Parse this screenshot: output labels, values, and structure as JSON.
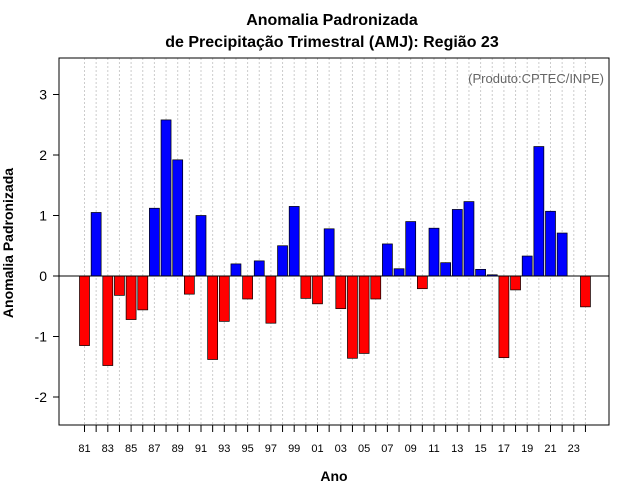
{
  "chart_data": {
    "type": "bar",
    "title_line1": "Anomalia Padronizada",
    "title_line2": "de Precipitação Trimestral (AMJ): Região 23",
    "xlabel": "Ano",
    "ylabel": "Anomalia Padronizada",
    "credit": "(Produto:CPTEC/INPE)",
    "ylim": [
      -2.5,
      3.6
    ],
    "yticks": [
      -2,
      -1,
      0,
      1,
      2,
      3
    ],
    "ytick_labels": [
      "-2",
      "-1",
      "0",
      "1",
      "2",
      "3"
    ],
    "years": [
      "81",
      "82",
      "83",
      "84",
      "85",
      "86",
      "87",
      "88",
      "89",
      "90",
      "91",
      "92",
      "93",
      "94",
      "95",
      "96",
      "97",
      "98",
      "99",
      "00",
      "01",
      "02",
      "03",
      "04",
      "05",
      "06",
      "07",
      "08",
      "09",
      "10",
      "11",
      "12",
      "13",
      "14",
      "15",
      "16",
      "17",
      "18",
      "19",
      "20",
      "21",
      "22",
      "23",
      "24"
    ],
    "xtick_labels": [
      "81",
      "83",
      "85",
      "87",
      "89",
      "91",
      "93",
      "95",
      "97",
      "99",
      "01",
      "03",
      "05",
      "07",
      "09",
      "11",
      "13",
      "15",
      "17",
      "19",
      "21",
      "23"
    ],
    "values": [
      -1.15,
      1.05,
      -1.48,
      -0.32,
      -0.72,
      -0.56,
      1.12,
      2.58,
      1.92,
      -0.3,
      1.0,
      -1.38,
      -0.75,
      0.2,
      -0.38,
      0.25,
      -0.78,
      0.5,
      1.15,
      -0.37,
      -0.46,
      0.78,
      -0.54,
      -1.36,
      -1.28,
      -0.38,
      0.53,
      0.12,
      0.9,
      -0.21,
      0.79,
      0.22,
      1.1,
      1.23,
      0.11,
      0.02,
      -1.35,
      -0.23,
      0.33,
      2.14,
      1.07,
      0.71,
      0.0,
      -0.51
    ],
    "colors": {
      "positive": "#0000ff",
      "negative": "#ff0000",
      "grid": "#cccccc",
      "axis": "#000000"
    }
  }
}
